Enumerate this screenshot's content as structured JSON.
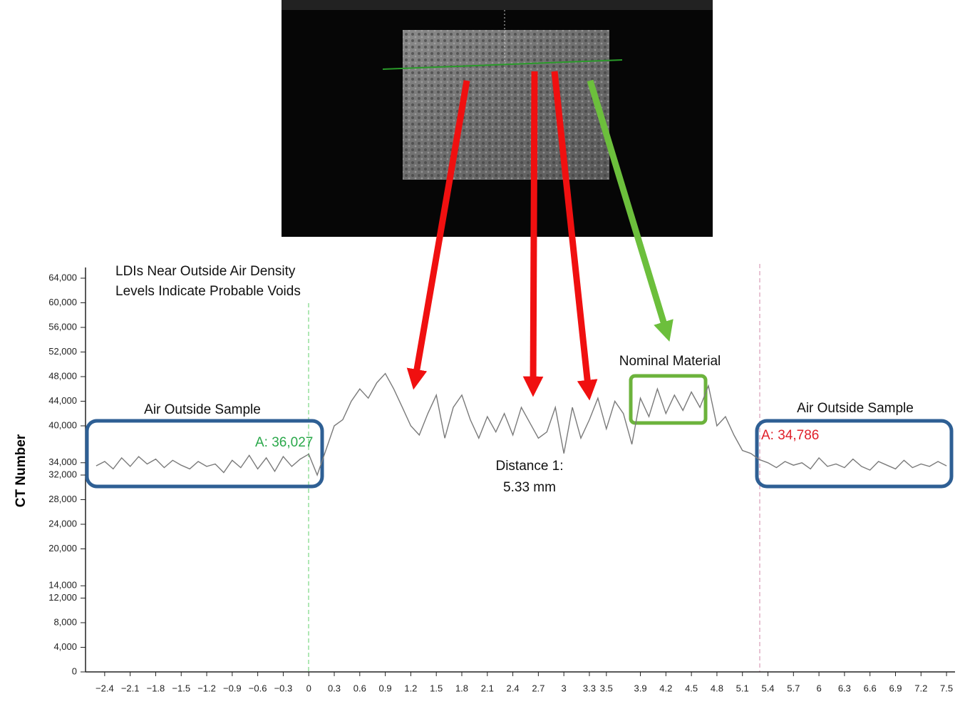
{
  "chart_data": {
    "type": "line",
    "y_label": "CT Number",
    "annotations": [
      {
        "text": "LDIs Near Outside Air Density",
        "color": "#111111"
      },
      {
        "text": "Levels Indicate Probable Voids",
        "color": "#111111"
      },
      {
        "text": "Air Outside Sample",
        "color": "#111111"
      },
      {
        "text": "Air Outside Sample",
        "color": "#111111"
      },
      {
        "text": "A: 36,027",
        "color": "#2aa84a"
      },
      {
        "text": "A: 34,786",
        "color": "#e0202a"
      },
      {
        "text": "Distance 1:",
        "color": "#111111"
      },
      {
        "text": "5.33 mm",
        "color": "#111111"
      },
      {
        "text": "Nominal Material",
        "color": "#111111"
      }
    ],
    "xlim": [
      -2.6,
      7.6
    ],
    "ylim": [
      0,
      64000
    ],
    "xticks": [
      {
        "value": -2.4,
        "label": "−2.4"
      },
      {
        "value": -2.1,
        "label": "−2.1"
      },
      {
        "value": -1.8,
        "label": "−1.8"
      },
      {
        "value": -1.5,
        "label": "−1.5"
      },
      {
        "value": -1.2,
        "label": "−1.2"
      },
      {
        "value": -0.9,
        "label": "−0.9"
      },
      {
        "value": -0.6,
        "label": "−0.6"
      },
      {
        "value": -0.3,
        "label": "−0.3"
      },
      0,
      0.3,
      0.6,
      0.9,
      1.2,
      1.5,
      1.8,
      2.1,
      2.4,
      2.7,
      3,
      3.3,
      3.5,
      3.9,
      4.2,
      4.5,
      4.8,
      5.1,
      5.4,
      5.7,
      6,
      6.3,
      6.6,
      6.9,
      7.2,
      7.5
    ],
    "yticks": [
      0,
      {
        "value": 4000,
        "label": "4,000"
      },
      {
        "value": 8000,
        "label": "8,000"
      },
      {
        "value": 12000,
        "label": "12,000"
      },
      {
        "value": 14000,
        "label": "14,000"
      },
      {
        "value": 20000,
        "label": "20,000"
      },
      {
        "value": 24000,
        "label": "24,000"
      },
      {
        "value": 28000,
        "label": "28,000"
      },
      {
        "value": 32000,
        "label": "32,000"
      },
      {
        "value": 34000,
        "label": "34,000"
      },
      {
        "value": 40000,
        "label": "40,000"
      },
      {
        "value": 44000,
        "label": "44,000"
      },
      {
        "value": 48000,
        "label": "48,000"
      },
      {
        "value": 52000,
        "label": "52,000"
      },
      {
        "value": 56000,
        "label": "56,000"
      },
      {
        "value": 60000,
        "label": "60,000"
      },
      {
        "value": 64000,
        "label": "64,000"
      }
    ],
    "x": [
      -2.5,
      -2.4,
      -2.3,
      -2.2,
      -2.1,
      -2.0,
      -1.9,
      -1.8,
      -1.7,
      -1.6,
      -1.5,
      -1.4,
      -1.3,
      -1.2,
      -1.1,
      -1.0,
      -0.9,
      -0.8,
      -0.7,
      -0.6,
      -0.5,
      -0.4,
      -0.3,
      -0.2,
      -0.1,
      0,
      0.1,
      0.2,
      0.3,
      0.4,
      0.5,
      0.6,
      0.7,
      0.8,
      0.9,
      1.0,
      1.1,
      1.2,
      1.3,
      1.4,
      1.5,
      1.6,
      1.7,
      1.8,
      1.9,
      2.0,
      2.1,
      2.2,
      2.3,
      2.4,
      2.5,
      2.6,
      2.7,
      2.8,
      2.9,
      3.0,
      3.1,
      3.2,
      3.3,
      3.4,
      3.5,
      3.6,
      3.7,
      3.8,
      3.9,
      4.0,
      4.1,
      4.2,
      4.3,
      4.4,
      4.5,
      4.6,
      4.7,
      4.8,
      4.9,
      5.0,
      5.1,
      5.2,
      5.3,
      5.4,
      5.5,
      5.6,
      5.7,
      5.8,
      5.9,
      6.0,
      6.1,
      6.2,
      6.3,
      6.4,
      6.5,
      6.6,
      6.7,
      6.8,
      6.9,
      7.0,
      7.1,
      7.2,
      7.3,
      7.4,
      7.5
    ],
    "series": [
      {
        "color": "#7a7a7a",
        "values": [
          33500,
          34200,
          33000,
          34800,
          33400,
          35000,
          33800,
          34600,
          33200,
          34400,
          33600,
          33000,
          34200,
          33400,
          33800,
          32400,
          34400,
          33200,
          35200,
          33000,
          34800,
          32600,
          35000,
          33400,
          34600,
          35400,
          32000,
          36000,
          40000,
          41000,
          44000,
          46000,
          44500,
          47000,
          48500,
          46000,
          43000,
          40000,
          38500,
          42000,
          45000,
          38000,
          43000,
          45000,
          41000,
          38000,
          41500,
          39000,
          42000,
          38500,
          43000,
          40500,
          38000,
          39000,
          43000,
          35500,
          43000,
          38000,
          41000,
          44500,
          39500,
          44000,
          42000,
          37000,
          44500,
          41500,
          46000,
          42000,
          45000,
          42500,
          45500,
          43000,
          46500,
          40000,
          41500,
          38500,
          36000,
          35500,
          34500,
          34000,
          33200,
          34200,
          33600,
          34000,
          33000,
          34800,
          33400,
          33800,
          33200,
          34600,
          33400,
          32800,
          34200,
          33600,
          33000,
          34400,
          33200,
          33800,
          33400,
          34200,
          33500
        ]
      }
    ]
  }
}
